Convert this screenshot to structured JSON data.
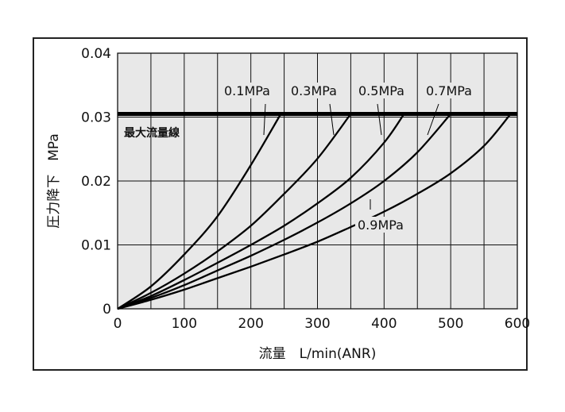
{
  "chart_data": {
    "type": "line",
    "title": "",
    "xlabel": "流量　L/min(ANR)",
    "ylabel": "圧力降下　MPa",
    "xlim": [
      0,
      600
    ],
    "ylim": [
      0,
      0.04
    ],
    "x_ticks": [
      "0",
      "100",
      "200",
      "300",
      "400",
      "500",
      "600"
    ],
    "y_ticks": [
      "0",
      "0.01",
      "0.02",
      "0.03",
      "0.04"
    ],
    "x_grid_step": 50,
    "y_grid_step": 0.01,
    "grid": true,
    "plot_background": "#e8e8e8",
    "line_color": "#000000",
    "max_flow_line": {
      "label": "最大流量線",
      "y": 0.0305
    },
    "series": [
      {
        "name": "0.1MPa",
        "x": [
          0,
          50,
          100,
          150,
          200,
          245
        ],
        "y": [
          0,
          0.0035,
          0.0085,
          0.0145,
          0.0225,
          0.0305
        ]
      },
      {
        "name": "0.3MPa",
        "x": [
          0,
          50,
          100,
          150,
          200,
          250,
          300,
          350
        ],
        "y": [
          0,
          0.0025,
          0.0055,
          0.009,
          0.013,
          0.018,
          0.0235,
          0.0305
        ]
      },
      {
        "name": "0.5MPa",
        "x": [
          0,
          50,
          100,
          150,
          200,
          250,
          300,
          350,
          400,
          430
        ],
        "y": [
          0,
          0.002,
          0.0045,
          0.0072,
          0.01,
          0.013,
          0.0165,
          0.0205,
          0.026,
          0.0305
        ]
      },
      {
        "name": "0.7MPa",
        "x": [
          0,
          50,
          100,
          150,
          200,
          250,
          300,
          350,
          400,
          450,
          500
        ],
        "y": [
          0,
          0.0017,
          0.0037,
          0.006,
          0.0083,
          0.0108,
          0.0135,
          0.0165,
          0.02,
          0.0245,
          0.0305
        ]
      },
      {
        "name": "0.9MPa",
        "x": [
          0,
          50,
          100,
          150,
          200,
          250,
          300,
          350,
          400,
          450,
          500,
          550,
          590
        ],
        "y": [
          0,
          0.0014,
          0.003,
          0.0048,
          0.0066,
          0.0085,
          0.0105,
          0.0128,
          0.0152,
          0.018,
          0.0212,
          0.0255,
          0.0305
        ]
      }
    ],
    "annotations": [
      "0.1MPa",
      "0.3MPa",
      "0.5MPa",
      "0.7MPa",
      "0.9MPa"
    ]
  }
}
